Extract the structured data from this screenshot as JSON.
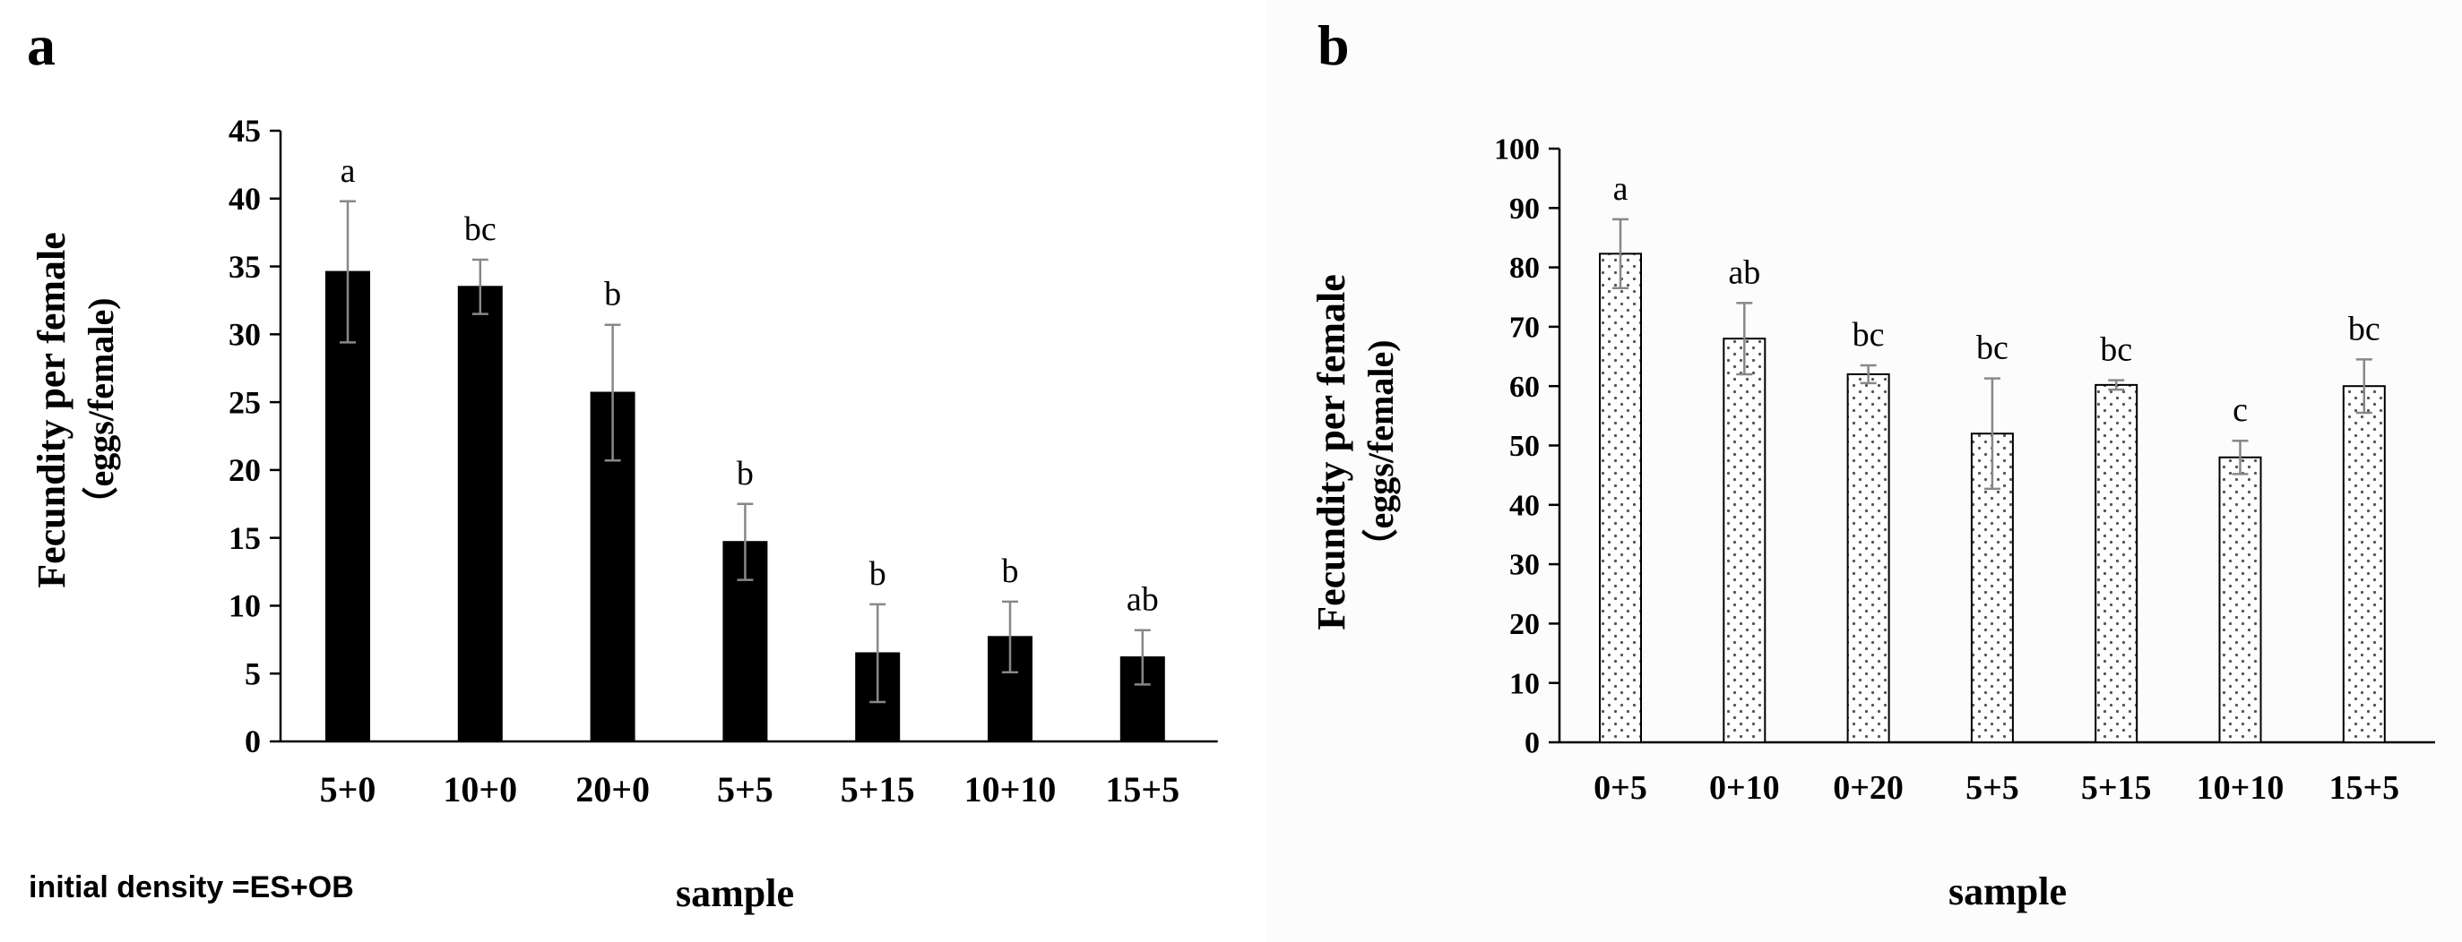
{
  "footnote": "initial density =ES+OB",
  "colors": {
    "axis": "#000000",
    "bar_a": "#000000",
    "bar_b_fill": "#ffffff",
    "bar_b_dots": "#555555",
    "error": "#888888"
  },
  "chart_data": [
    {
      "type": "bar",
      "panel_label": "a",
      "title": "",
      "xlabel": "sample",
      "ylabel": "Fecundity per female",
      "ylabel2": "（eggs/female)",
      "ylim": [
        0,
        45
      ],
      "yticks": [
        0,
        5,
        10,
        15,
        20,
        25,
        30,
        35,
        40,
        45
      ],
      "categories": [
        "5+0",
        "10+0",
        "20+0",
        "5+5",
        "5+15",
        "10+10",
        "15+5"
      ],
      "values": [
        34.6,
        33.5,
        25.7,
        14.7,
        6.5,
        7.7,
        6.2
      ],
      "errors": [
        5.2,
        2.0,
        5.0,
        2.8,
        3.6,
        2.6,
        2.0
      ],
      "letters": [
        "a",
        "bc",
        "b",
        "b",
        "b",
        "b",
        "ab"
      ],
      "bar_style": "solid-black",
      "grid": false
    },
    {
      "type": "bar",
      "panel_label": "b",
      "title": "",
      "xlabel": "sample",
      "ylabel": "Fecundity per female",
      "ylabel2": "（eggs/female)",
      "ylim": [
        0,
        100
      ],
      "yticks": [
        0,
        10,
        20,
        30,
        40,
        50,
        60,
        70,
        80,
        90,
        100
      ],
      "categories": [
        "0+5",
        "0+10",
        "0+20",
        "5+5",
        "5+15",
        "10+10",
        "15+5"
      ],
      "values": [
        82.3,
        68.0,
        62.0,
        52.0,
        60.2,
        48.0,
        60.0
      ],
      "errors": [
        5.8,
        6.0,
        1.5,
        9.3,
        0.8,
        2.8,
        4.5
      ],
      "letters": [
        "a",
        "ab",
        "bc",
        "bc",
        "bc",
        "c",
        "bc"
      ],
      "bar_style": "dotted-white",
      "grid": false
    }
  ]
}
